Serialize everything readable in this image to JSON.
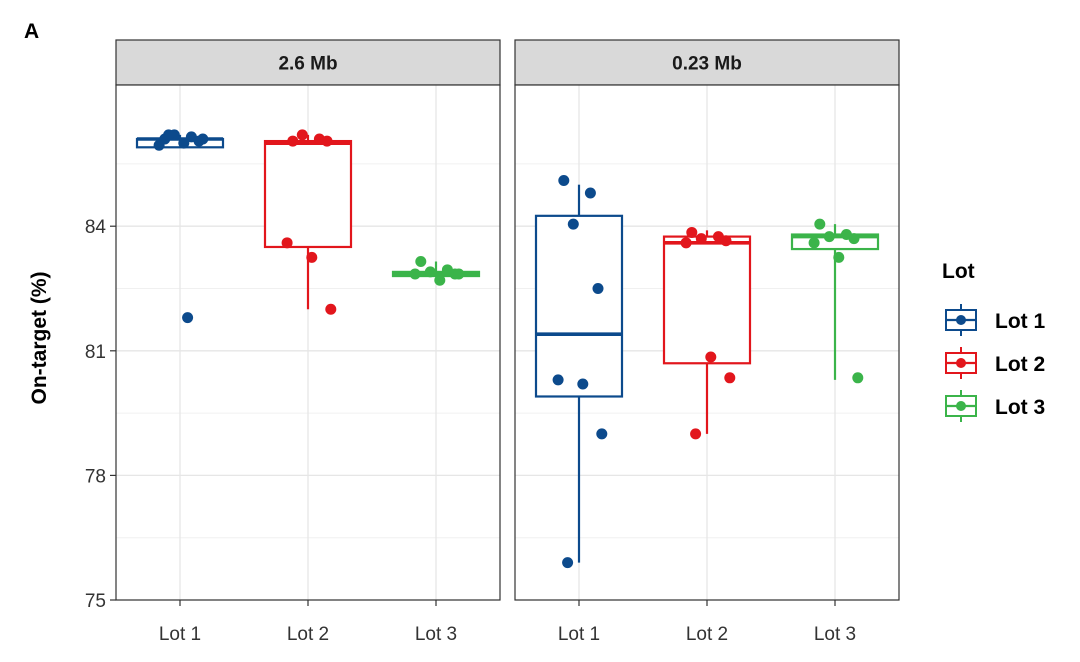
{
  "panel_label": "A",
  "chart_data": {
    "type": "boxplot",
    "ylabel": "On-target (%)",
    "xlabel": "",
    "ylim": [
      75,
      87.4
    ],
    "yticks": [
      75,
      78,
      81,
      84
    ],
    "grid": true,
    "legend": {
      "title": "Lot",
      "placement": "right",
      "entries": [
        "Lot 1",
        "Lot 2",
        "Lot 3"
      ]
    },
    "colors": {
      "Lot 1": "#0c4a8c",
      "Lot 2": "#e2161c",
      "Lot 3": "#3bb44a"
    },
    "categories": [
      "Lot 1",
      "Lot 2",
      "Lot 3"
    ],
    "panels": [
      {
        "title": "2.6 Mb",
        "groups": [
          {
            "name": "Lot 1",
            "box": {
              "whisker_low": 85.9,
              "q1": 85.9,
              "median": 86.1,
              "q3": 86.1,
              "whisker_high": 86.2
            },
            "points": [
              86.1,
              86.15,
              86.2,
              86.05,
              85.95,
              86.0,
              86.1,
              86.2,
              81.8
            ]
          },
          {
            "name": "Lot 2",
            "box": {
              "whisker_low": 82.0,
              "q1": 83.5,
              "median": 86.0,
              "q3": 86.05,
              "whisker_high": 86.2
            },
            "points": [
              86.05,
              86.1,
              86.2,
              86.05,
              83.6,
              83.25,
              82.0
            ]
          },
          {
            "name": "Lot 3",
            "box": {
              "whisker_low": 82.8,
              "q1": 82.8,
              "median": 82.85,
              "q3": 82.9,
              "whisker_high": 83.15
            },
            "points": [
              83.15,
              82.95,
              82.9,
              82.85,
              82.85,
              82.7,
              82.85
            ]
          }
        ]
      },
      {
        "title": "0.23 Mb",
        "groups": [
          {
            "name": "Lot 1",
            "box": {
              "whisker_low": 75.9,
              "q1": 79.9,
              "median": 81.4,
              "q3": 84.25,
              "whisker_high": 85.0
            },
            "points": [
              85.1,
              84.8,
              84.05,
              82.5,
              80.3,
              80.2,
              79.0,
              75.9
            ]
          },
          {
            "name": "Lot 2",
            "box": {
              "whisker_low": 79.0,
              "q1": 80.7,
              "median": 83.6,
              "q3": 83.75,
              "whisker_high": 83.9
            },
            "points": [
              83.85,
              83.75,
              83.7,
              83.65,
              83.6,
              80.85,
              80.35,
              79.0
            ]
          },
          {
            "name": "Lot 3",
            "box": {
              "whisker_low": 80.3,
              "q1": 83.45,
              "median": 83.75,
              "q3": 83.8,
              "whisker_high": 84.05
            },
            "points": [
              84.05,
              83.8,
              83.75,
              83.7,
              83.6,
              83.25,
              80.35
            ]
          }
        ]
      }
    ]
  }
}
